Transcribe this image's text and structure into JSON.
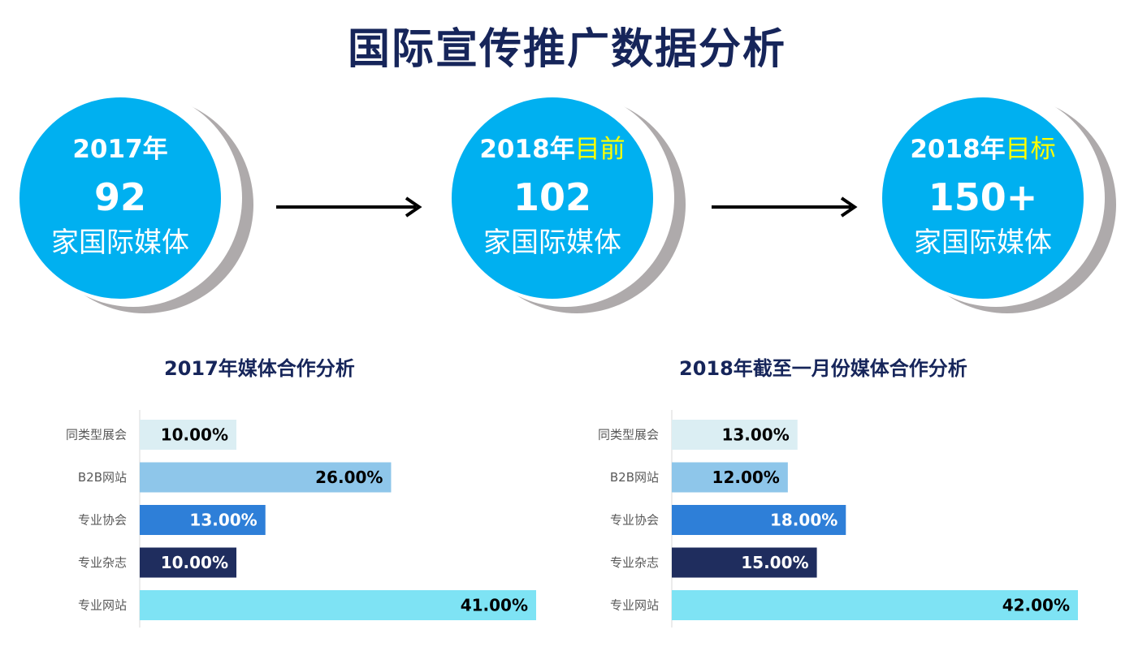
{
  "title": "国际宣传推广数据分析",
  "circles": [
    {
      "year": "2017年",
      "highlight": "",
      "number": "92",
      "label": "家国际媒体"
    },
    {
      "year": "2018年",
      "highlight": "目前",
      "number": "102",
      "label": "家国际媒体"
    },
    {
      "year": "2018年",
      "highlight": "目标",
      "number": "150+",
      "label": "家国际媒体"
    }
  ],
  "colors": {
    "title": "#16255a",
    "circle_fill": "#00b0f0",
    "circle_shadow": "#aeaaab",
    "highlight": "#ffff00"
  },
  "chart_data": [
    {
      "type": "bar",
      "orientation": "horizontal",
      "title": "2017年媒体合作分析",
      "categories": [
        "同类型展会",
        "B2B网站",
        "专业协会",
        "专业杂志",
        "专业网站"
      ],
      "values": [
        10,
        26,
        13,
        10,
        41
      ],
      "value_labels": [
        "10.00%",
        "26.00%",
        "13.00%",
        "10.00%",
        "41.00%"
      ],
      "bar_colors": [
        "#dbeef3",
        "#8ec6ea",
        "#2e7fd8",
        "#1f2d5e",
        "#7ee3f4"
      ],
      "label_colors": [
        "#000000",
        "#000000",
        "#ffffff",
        "#ffffff",
        "#000000"
      ],
      "xlim": [
        0,
        41
      ],
      "grid": false
    },
    {
      "type": "bar",
      "orientation": "horizontal",
      "title": "2018年截至一月份媒体合作分析",
      "categories": [
        "同类型展会",
        "B2B网站",
        "专业协会",
        "专业杂志",
        "专业网站"
      ],
      "values": [
        13,
        12,
        18,
        15,
        42
      ],
      "value_labels": [
        "13.00%",
        "12.00%",
        "18.00%",
        "15.00%",
        "42.00%"
      ],
      "bar_colors": [
        "#dbeef3",
        "#8ec6ea",
        "#2e7fd8",
        "#1f2d5e",
        "#7ee3f4"
      ],
      "label_colors": [
        "#000000",
        "#000000",
        "#ffffff",
        "#ffffff",
        "#000000"
      ],
      "xlim": [
        0,
        42
      ],
      "grid": false
    }
  ]
}
